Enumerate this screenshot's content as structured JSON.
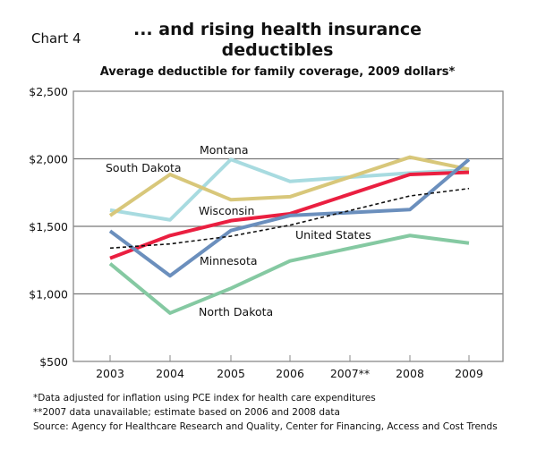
{
  "chart_label": "Chart 4",
  "chart_data": {
    "type": "line",
    "title": "... and rising health insurance deductibles",
    "subtitle": "Average deductible for family coverage, 2009 dollars*",
    "categories": [
      "2003",
      "2004",
      "2005",
      "2006",
      "2007**",
      "2008",
      "2009"
    ],
    "ylim": [
      500,
      2500
    ],
    "yticks": [
      500,
      1000,
      1500,
      2000,
      2500
    ],
    "ytick_labels": [
      "$500",
      "$1,000",
      "$1,500",
      "$2,000",
      "$2,500"
    ],
    "grid": true,
    "series": [
      {
        "name": "Montana",
        "color": "#a8dbe0",
        "values": [
          1620,
          1548,
          1995,
          1833,
          null,
          1895,
          1917
        ]
      },
      {
        "name": "South Dakota",
        "color": "#d8c77a",
        "values": [
          1580,
          1884,
          1697,
          1719,
          null,
          2012,
          1922
        ]
      },
      {
        "name": "Wisconsin",
        "color": "#ea1f40",
        "values": [
          1264,
          1432,
          1542,
          1593,
          null,
          1884,
          1900
        ]
      },
      {
        "name": "Minnesota",
        "color": "#6b8fbd",
        "values": [
          1465,
          1134,
          1469,
          1580,
          null,
          1624,
          1995
        ]
      },
      {
        "name": "United States",
        "color": "#111111",
        "dashed": true,
        "values": [
          1339,
          1370,
          1427,
          1509,
          null,
          1725,
          1780
        ]
      },
      {
        "name": "North Dakota",
        "color": "#85c9a2",
        "values": [
          1224,
          858,
          1041,
          1244,
          null,
          1432,
          1376
        ]
      }
    ]
  },
  "footnotes": [
    "*Data adjusted for inflation using PCE index for health care expenditures",
    "**2007 data unavailable; estimate based on 2006 and 2008 data",
    "Source: Agency for Healthcare Research and Quality, Center for Financing, Access and Cost Trends"
  ]
}
